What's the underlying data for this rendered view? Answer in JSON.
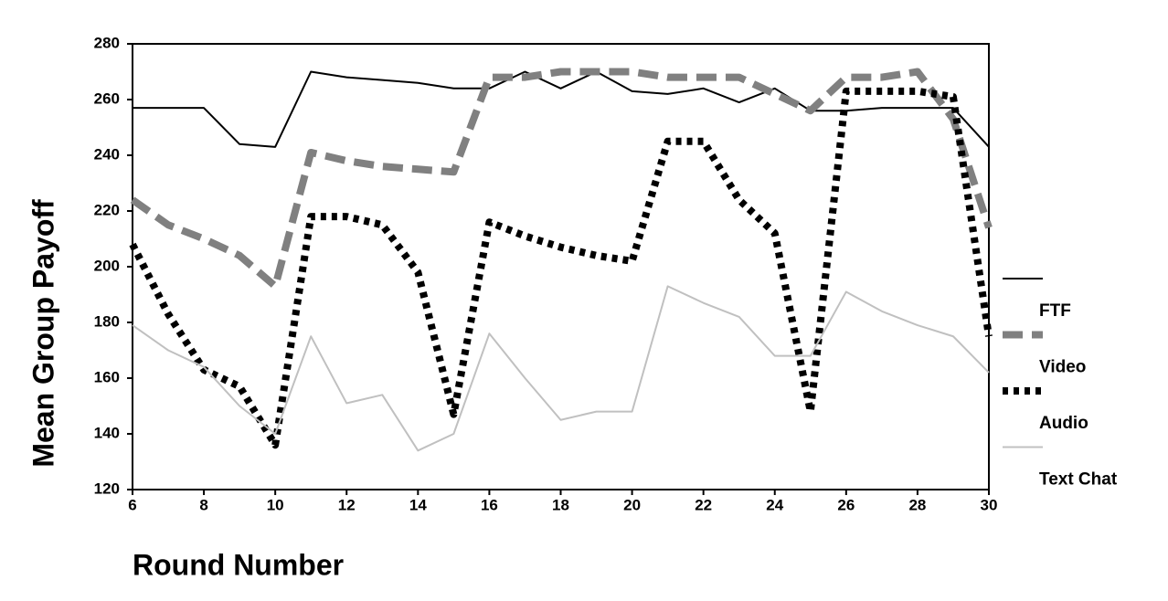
{
  "chart_data": {
    "type": "line",
    "xlabel": "Round Number",
    "ylabel": "Mean Group Payoff",
    "x": [
      6,
      7,
      8,
      9,
      10,
      11,
      12,
      13,
      14,
      15,
      16,
      17,
      18,
      19,
      20,
      21,
      22,
      23,
      24,
      25,
      26,
      27,
      28,
      29,
      30
    ],
    "series": [
      {
        "name": "FTF",
        "color": "#000000",
        "width": 2,
        "dash": "none",
        "values": [
          257,
          257,
          257,
          244,
          243,
          270,
          268,
          267,
          266,
          264,
          264,
          270,
          264,
          270,
          263,
          262,
          264,
          259,
          264,
          256,
          256,
          257,
          257,
          257,
          243
        ]
      },
      {
        "name": "Video",
        "color": "#808080",
        "width": 8,
        "dash": "22 10",
        "values": [
          224,
          215,
          210,
          204,
          193,
          241,
          238,
          236,
          235,
          234,
          268,
          268,
          270,
          270,
          270,
          268,
          268,
          268,
          262,
          256,
          268,
          268,
          270,
          253,
          214
        ]
      },
      {
        "name": "Audio",
        "color": "#000000",
        "width": 8,
        "dash": "6 6",
        "values": [
          208,
          183,
          163,
          157,
          136,
          218,
          218,
          215,
          198,
          147,
          216,
          211,
          207,
          204,
          202,
          245,
          245,
          224,
          212,
          148,
          263,
          263,
          263,
          261,
          175
        ]
      },
      {
        "name": "Text Chat",
        "color": "#c0c0c0",
        "width": 2,
        "dash": "none",
        "values": [
          179,
          170,
          164,
          150,
          140,
          175,
          151,
          154,
          134,
          140,
          176,
          160,
          145,
          148,
          148,
          193,
          187,
          182,
          168,
          168,
          191,
          184,
          179,
          175,
          162
        ]
      }
    ],
    "xlim": [
      6,
      30
    ],
    "xticks": [
      6,
      8,
      10,
      12,
      14,
      16,
      18,
      20,
      22,
      24,
      26,
      28,
      30
    ],
    "ylim": [
      120,
      280
    ],
    "yticks": [
      120,
      140,
      160,
      180,
      200,
      220,
      240,
      260,
      280
    ],
    "legend": "right"
  }
}
